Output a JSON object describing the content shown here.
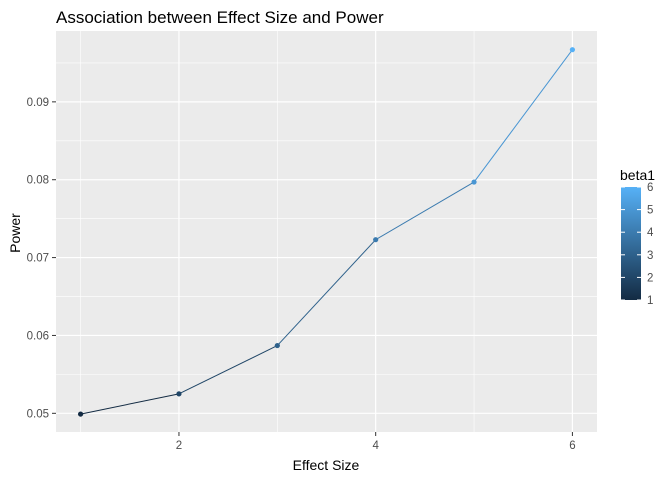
{
  "chart_data": {
    "type": "line",
    "title": "Association between Effect Size and Power",
    "xlabel": "Effect Size",
    "ylabel": "Power",
    "x": [
      1,
      2,
      3,
      4,
      5,
      6
    ],
    "series": [
      {
        "values": [
          0.0499,
          0.0525,
          0.0587,
          0.0723,
          0.0797,
          0.0967
        ]
      }
    ],
    "color_values": [
      1,
      2,
      3,
      4,
      5,
      6
    ],
    "xlim": [
      0.75,
      6.25
    ],
    "ylim": [
      0.0476,
      0.0991
    ],
    "x_ticks": [
      2,
      4,
      6
    ],
    "y_ticks": [
      0.05,
      0.06,
      0.07,
      0.08,
      0.09
    ],
    "y_tick_labels": [
      "0.05",
      "0.06",
      "0.07",
      "0.08",
      "0.09"
    ],
    "grid": true,
    "legend": {
      "title": "beta1",
      "position": "right",
      "type": "colorbar",
      "min": 1,
      "max": 6,
      "breaks": [
        1,
        2,
        3,
        4,
        5,
        6
      ],
      "low_color": "#132B43",
      "high_color": "#56B1F7"
    },
    "panel_background": "#EBEBEB",
    "grid_color": "#FFFFFF"
  }
}
